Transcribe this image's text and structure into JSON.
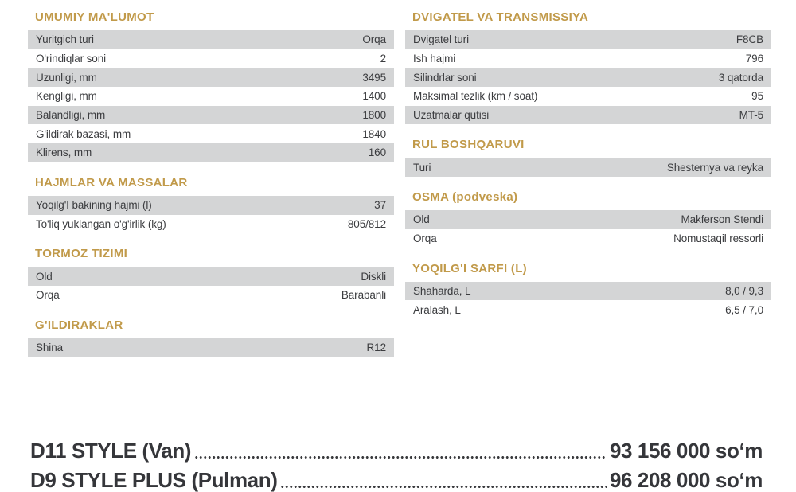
{
  "theme": {
    "accent_gold": "#C19A4A",
    "row_stripe": "#D4D5D6",
    "text": "#3B3C3F",
    "price_text": "#35363A"
  },
  "spec_columns": {
    "left": {
      "sections": [
        {
          "title": "UMUMIY MA'LUMOT",
          "rows": [
            {
              "label": "Yuritgich turi",
              "value": "Orqa"
            },
            {
              "label": "O'rindiqlar soni",
              "value": "2"
            },
            {
              "label": "Uzunligi, mm",
              "value": "3495"
            },
            {
              "label": "Kengligi, mm",
              "value": "1400"
            },
            {
              "label": "Balandligi, mm",
              "value": "1800"
            },
            {
              "label": "G'ildirak bazasi, mm",
              "value": "1840"
            },
            {
              "label": "Klirens, mm",
              "value": "160"
            }
          ]
        },
        {
          "title": "HAJMLAR VA MASSALAR",
          "rows": [
            {
              "label": "Yoqilg'I bakining hajmi (l)",
              "value": "37"
            },
            {
              "label": "To'liq yuklangan o'g'irlik (kg)",
              "value": "805/812"
            }
          ]
        },
        {
          "title": "TORMOZ TIZIMI",
          "rows": [
            {
              "label": "Old",
              "value": "Diskli"
            },
            {
              "label": "Orqa",
              "value": "Barabanli"
            }
          ]
        },
        {
          "title": "G'ILDIRAKLAR",
          "rows": [
            {
              "label": "Shina",
              "value": "R12"
            }
          ]
        }
      ]
    },
    "right": {
      "sections": [
        {
          "title": "DVIGATEL VA TRANSMISSIYA",
          "rows": [
            {
              "label": "Dvigatel turi",
              "value": "F8CB"
            },
            {
              "label": "Ish hajmi",
              "value": "796"
            },
            {
              "label": "Silindrlar soni",
              "value": "3 qatorda"
            },
            {
              "label": "Maksimal tezlik (km / soat)",
              "value": "95"
            },
            {
              "label": "Uzatmalar qutisi",
              "value": "MT-5"
            }
          ]
        },
        {
          "title": "RUL BOSHQARUVI",
          "rows": [
            {
              "label": "Turi",
              "value": "Shesternya va reyka"
            }
          ]
        },
        {
          "title": "OSMA (podveska)",
          "rows": [
            {
              "label": "Old",
              "value": "Makferson Stendi"
            },
            {
              "label": "Orqa",
              "value": "Nomustaqil ressorli"
            }
          ]
        },
        {
          "title": "YOQILG'I SARFI (L)",
          "rows": [
            {
              "label": "Shaharda, L",
              "value": "8,0 / 9,3"
            },
            {
              "label": "Aralash, L",
              "value": "6,5 / 7,0"
            }
          ]
        }
      ]
    }
  },
  "price_list": {
    "items": [
      {
        "name": "D11 STYLE (Van)",
        "price": "93 156 000 so‘m"
      },
      {
        "name": "D9 STYLE PLUS (Pulman)",
        "price": "96 208 000 so‘m"
      }
    ]
  }
}
